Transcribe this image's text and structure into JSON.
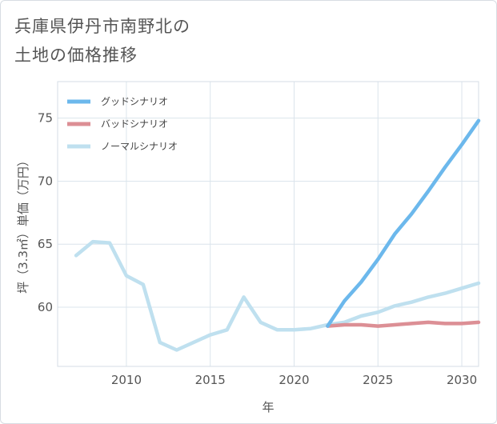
{
  "title": {
    "line1": "兵庫県伊丹市南野北の",
    "line2": "土地の価格推移"
  },
  "chart_data": {
    "type": "line",
    "title": "兵庫県伊丹市南野北の土地の価格推移",
    "xlabel": "年",
    "ylabel": "坪（3.3㎡）単価（万円）",
    "xlim": [
      2005.9,
      2031
    ],
    "ylim": [
      55.3,
      77.9
    ],
    "xticks": [
      2010,
      2015,
      2020,
      2025,
      2030
    ],
    "yticks": [
      60,
      65,
      70,
      75
    ],
    "grid": true,
    "legend_position": "top-left",
    "series": [
      {
        "name": "グッドシナリオ",
        "color": "#6cb8ec",
        "x": [
          2022,
          2023,
          2024,
          2025,
          2026,
          2027,
          2028,
          2029,
          2030,
          2031
        ],
        "values": [
          58.5,
          60.5,
          62.0,
          63.8,
          65.8,
          67.4,
          69.2,
          71.1,
          72.9,
          74.8
        ]
      },
      {
        "name": "バッドシナリオ",
        "color": "#dc8f95",
        "x": [
          2022,
          2023,
          2024,
          2025,
          2026,
          2027,
          2028,
          2029,
          2030,
          2031
        ],
        "values": [
          58.5,
          58.6,
          58.6,
          58.5,
          58.6,
          58.7,
          58.8,
          58.7,
          58.7,
          58.8
        ]
      },
      {
        "name": "ノーマルシナリオ",
        "color": "#bfe0ef",
        "x": [
          2007,
          2008,
          2009,
          2010,
          2011,
          2012,
          2013,
          2014,
          2015,
          2016,
          2017,
          2018,
          2019,
          2020,
          2021,
          2022,
          2023,
          2024,
          2025,
          2026,
          2027,
          2028,
          2029,
          2030,
          2031
        ],
        "values": [
          64.1,
          65.2,
          65.1,
          62.5,
          61.8,
          57.2,
          56.6,
          57.2,
          57.8,
          58.2,
          60.8,
          58.8,
          58.2,
          58.2,
          58.3,
          58.6,
          58.8,
          59.3,
          59.6,
          60.1,
          60.4,
          60.8,
          61.1,
          61.5,
          61.9
        ]
      }
    ]
  }
}
